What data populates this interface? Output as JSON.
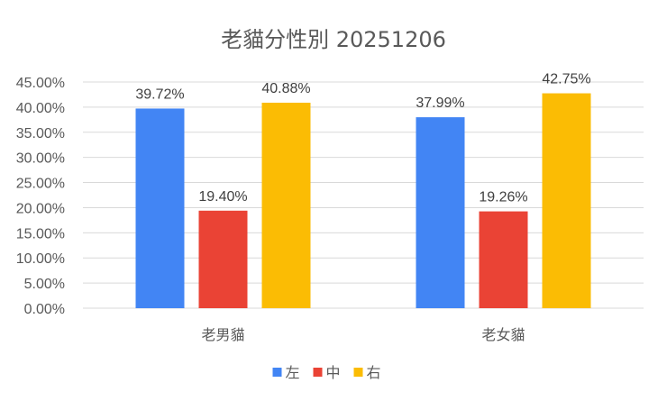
{
  "chart_data": {
    "type": "bar",
    "title": "老貓分性別 20251206",
    "categories": [
      "老男貓",
      "老女貓"
    ],
    "series": [
      {
        "name": "左",
        "color": "#4285f4",
        "values": [
          39.72,
          37.99
        ],
        "labels": [
          "39.72%",
          "37.99%"
        ]
      },
      {
        "name": "中",
        "color": "#ea4335",
        "values": [
          19.4,
          19.26
        ],
        "labels": [
          "19.40%",
          "19.26%"
        ]
      },
      {
        "name": "右",
        "color": "#fbbc04",
        "values": [
          40.88,
          42.75
        ],
        "labels": [
          "40.88%",
          "42.75%"
        ]
      }
    ],
    "ylim": [
      0,
      45
    ],
    "yticks": [
      "0.00%",
      "5.00%",
      "10.00%",
      "15.00%",
      "20.00%",
      "25.00%",
      "30.00%",
      "35.00%",
      "40.00%",
      "45.00%"
    ],
    "ytick_values": [
      0,
      5,
      10,
      15,
      20,
      25,
      30,
      35,
      40,
      45
    ],
    "grid": true,
    "legend_position": "bottom"
  }
}
